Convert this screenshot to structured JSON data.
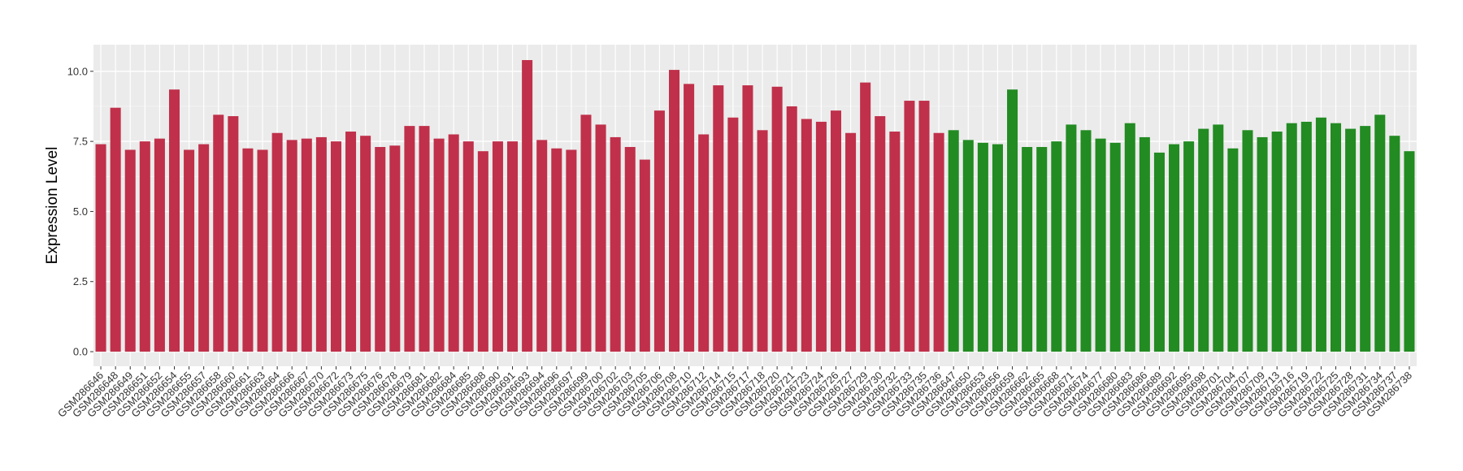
{
  "chart_data": {
    "type": "bar",
    "y_label": "Expression Level",
    "categories": [
      "GSM286646",
      "GSM286648",
      "GSM286649",
      "GSM286651",
      "GSM286652",
      "GSM286654",
      "GSM286655",
      "GSM286657",
      "GSM286658",
      "GSM286660",
      "GSM286661",
      "GSM286663",
      "GSM286664",
      "GSM286666",
      "GSM286667",
      "GSM286670",
      "GSM286672",
      "GSM286673",
      "GSM286675",
      "GSM286676",
      "GSM286678",
      "GSM286679",
      "GSM286681",
      "GSM286682",
      "GSM286684",
      "GSM286685",
      "GSM286688",
      "GSM286690",
      "GSM286691",
      "GSM286693",
      "GSM286694",
      "GSM286696",
      "GSM286697",
      "GSM286699",
      "GSM286700",
      "GSM286702",
      "GSM286703",
      "GSM286705",
      "GSM286706",
      "GSM286708",
      "GSM286710",
      "GSM286712",
      "GSM286714",
      "GSM286715",
      "GSM286717",
      "GSM286718",
      "GSM286720",
      "GSM286721",
      "GSM286723",
      "GSM286724",
      "GSM286726",
      "GSM286727",
      "GSM286729",
      "GSM286730",
      "GSM286732",
      "GSM286733",
      "GSM286735",
      "GSM286736",
      "GSM286647",
      "GSM286650",
      "GSM286653",
      "GSM286656",
      "GSM286659",
      "GSM286662",
      "GSM286665",
      "GSM286668",
      "GSM286671",
      "GSM286674",
      "GSM286677",
      "GSM286680",
      "GSM286683",
      "GSM286686",
      "GSM286689",
      "GSM286692",
      "GSM286695",
      "GSM286698",
      "GSM286701",
      "GSM286704",
      "GSM286707",
      "GSM286709",
      "GSM286713",
      "GSM286716",
      "GSM286719",
      "GSM286722",
      "GSM286725",
      "GSM286728",
      "GSM286731",
      "GSM286734",
      "GSM286737",
      "GSM286738"
    ],
    "series": [
      {
        "color": "#c0304a",
        "values": [
          7.4,
          8.7,
          7.2,
          7.5,
          7.6,
          9.35,
          7.2,
          7.4,
          8.45,
          8.4,
          7.25,
          7.2,
          7.8,
          7.55,
          7.6,
          7.65,
          7.5,
          7.85,
          7.7,
          7.3,
          7.35,
          8.05,
          8.05,
          7.6,
          7.75,
          7.5,
          7.15,
          7.5,
          7.5,
          10.4,
          7.55,
          7.25,
          7.2,
          8.45,
          8.1,
          7.65,
          7.3,
          6.85,
          8.6,
          10.05,
          9.55,
          7.75,
          9.5,
          8.35,
          9.5,
          7.9,
          9.45,
          8.75,
          8.3,
          8.2,
          8.6,
          7.8,
          9.6,
          8.4,
          7.85,
          8.95,
          8.95,
          7.8,
          null,
          null,
          null,
          null,
          null,
          null,
          null,
          null,
          null,
          null,
          null,
          null,
          null,
          null,
          null,
          null,
          null,
          null,
          null,
          null,
          null,
          null,
          null,
          null,
          null,
          null,
          null,
          null,
          null,
          null,
          null,
          null
        ]
      },
      {
        "color": "#228b22",
        "values": [
          null,
          null,
          null,
          null,
          null,
          null,
          null,
          null,
          null,
          null,
          null,
          null,
          null,
          null,
          null,
          null,
          null,
          null,
          null,
          null,
          null,
          null,
          null,
          null,
          null,
          null,
          null,
          null,
          null,
          null,
          null,
          null,
          null,
          null,
          null,
          null,
          null,
          null,
          null,
          null,
          null,
          null,
          null,
          null,
          null,
          null,
          null,
          null,
          null,
          null,
          null,
          null,
          null,
          null,
          null,
          null,
          null,
          null,
          7.9,
          7.55,
          7.45,
          7.4,
          9.35,
          7.3,
          7.3,
          7.5,
          8.1,
          7.9,
          7.6,
          7.45,
          8.15,
          7.65,
          7.1,
          7.4,
          7.5,
          7.95,
          8.1,
          7.25,
          7.9,
          7.65,
          7.85,
          8.15,
          8.2,
          8.35,
          8.15,
          7.95,
          8.05,
          8.45,
          7.7,
          7.15
        ]
      }
    ],
    "ylim": [
      -0.52,
      10.95
    ],
    "yticks": [
      {
        "value": 0,
        "label": "0.0"
      },
      {
        "value": 2.5,
        "label": "2.5"
      },
      {
        "value": 5,
        "label": "5.0"
      },
      {
        "value": 7.5,
        "label": "7.5"
      },
      {
        "value": 10,
        "label": "10.0"
      }
    ],
    "grid": true
  }
}
